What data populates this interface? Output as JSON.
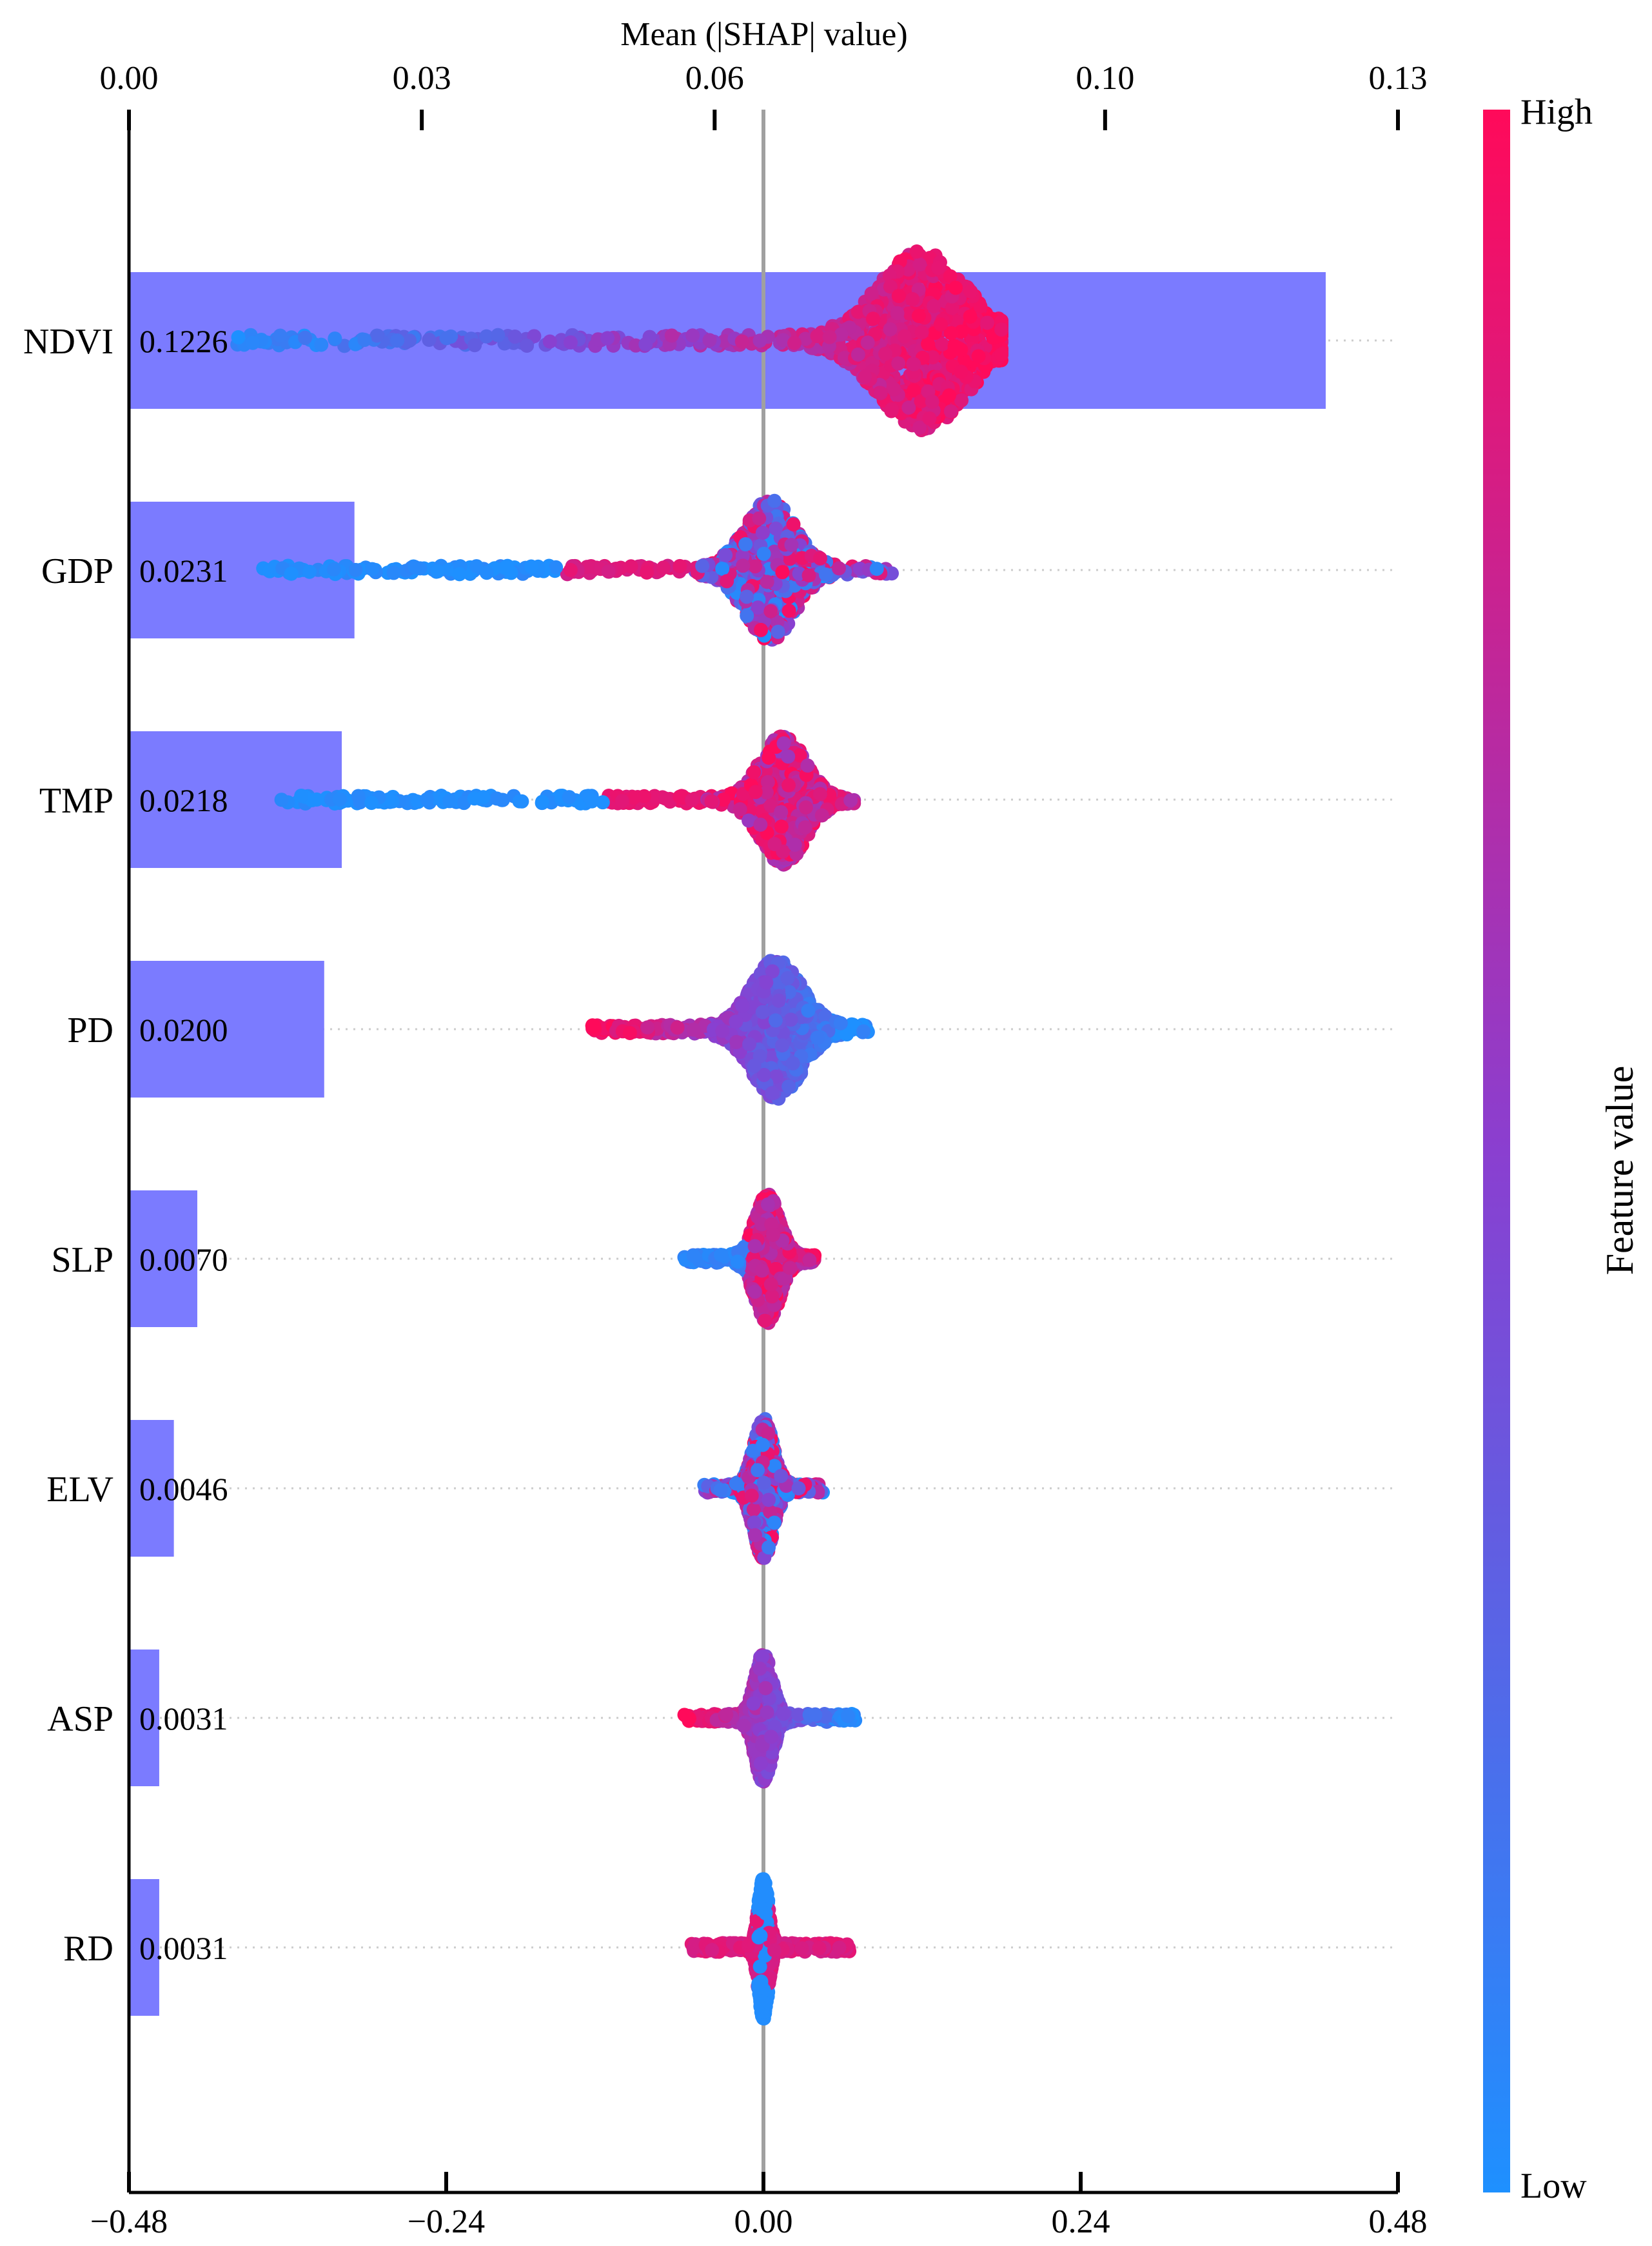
{
  "chart_data": {
    "type": "bar+beeswarm",
    "title": "",
    "top_axis": {
      "label": "Mean (|SHAP| value)",
      "range": [
        0.0,
        0.13
      ],
      "ticks": [
        0.0,
        0.03,
        0.06,
        0.1,
        0.13
      ],
      "tick_labels": [
        "0.00",
        "0.03",
        "0.06",
        "0.10",
        "0.13"
      ]
    },
    "bottom_axis": {
      "label": "",
      "range": [
        -0.48,
        0.48
      ],
      "ticks": [
        -0.48,
        -0.24,
        0.0,
        0.24,
        0.48
      ],
      "tick_labels": [
        "−0.48",
        "−0.24",
        "0.00",
        "0.24",
        "0.48"
      ]
    },
    "features": [
      {
        "name": "NDVI",
        "mean_abs_shap": 0.1226,
        "value_label": "0.1226",
        "shap_min": -0.4,
        "shap_max": 0.18,
        "core_center": 0.12,
        "core_width": 0.035,
        "max_spread": 1.0,
        "pattern": "low-left-high-right"
      },
      {
        "name": "GDP",
        "mean_abs_shap": 0.0231,
        "value_label": "0.0231",
        "shap_min": -0.38,
        "shap_max": 0.1,
        "core_center": 0.005,
        "core_width": 0.02,
        "max_spread": 0.78,
        "pattern": "mixed-core-low-tail"
      },
      {
        "name": "TMP",
        "mean_abs_shap": 0.0218,
        "value_label": "0.0218",
        "shap_min": -0.37,
        "shap_max": 0.07,
        "core_center": 0.015,
        "core_width": 0.018,
        "max_spread": 0.72,
        "pattern": "high-core-low-tail"
      },
      {
        "name": "PD",
        "mean_abs_shap": 0.02,
        "value_label": "0.0200",
        "shap_min": -0.13,
        "shap_max": 0.08,
        "core_center": 0.01,
        "core_width": 0.02,
        "max_spread": 0.78,
        "pattern": "high-left-low-right"
      },
      {
        "name": "SLP",
        "mean_abs_shap": 0.007,
        "value_label": "0.0070",
        "shap_min": -0.06,
        "shap_max": 0.04,
        "core_center": 0.003,
        "core_width": 0.01,
        "max_spread": 0.72,
        "pattern": "low-left-high-core"
      },
      {
        "name": "ELV",
        "mean_abs_shap": 0.0046,
        "value_label": "0.0046",
        "shap_min": -0.045,
        "shap_max": 0.045,
        "core_center": 0.0,
        "core_width": 0.008,
        "max_spread": 0.78,
        "pattern": "mixed"
      },
      {
        "name": "ASP",
        "mean_abs_shap": 0.0031,
        "value_label": "0.0031",
        "shap_min": -0.06,
        "shap_max": 0.07,
        "core_center": 0.0,
        "core_width": 0.007,
        "max_spread": 0.72,
        "pattern": "high-left-low-right"
      },
      {
        "name": "RD",
        "mean_abs_shap": 0.0031,
        "value_label": "0.0031",
        "shap_min": -0.055,
        "shap_max": 0.065,
        "core_center": 0.0,
        "core_width": 0.004,
        "max_spread": 0.8,
        "pattern": "high-tails-low-core"
      }
    ],
    "colorbar": {
      "label": "Feature value",
      "high_label": "High",
      "low_label": "Low",
      "high_color": "#ff0a5a",
      "mid_color": "#8a3fd0",
      "low_color": "#1e90ff"
    },
    "bar_color": "#7b7bff",
    "zero_line_color": "#a0a0a0",
    "grid": "dotted horizontal per feature"
  }
}
